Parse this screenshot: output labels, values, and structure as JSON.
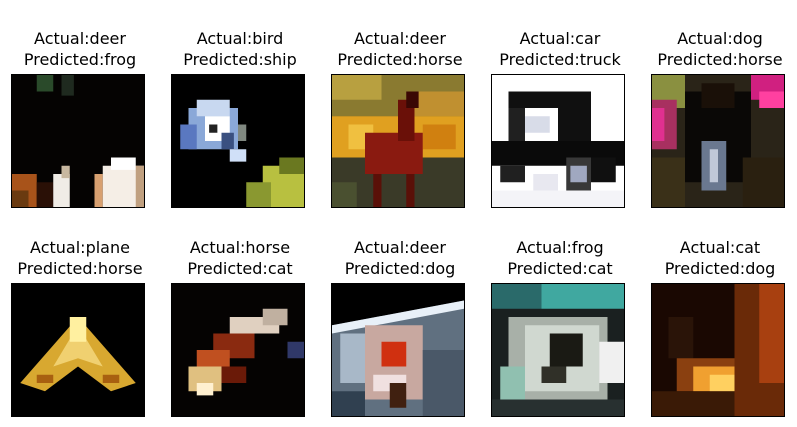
{
  "figure": {
    "panels": [
      {
        "actual_text": "Actual:deer",
        "predicted_text": "Predicted:frog"
      },
      {
        "actual_text": "Actual:bird",
        "predicted_text": "Predicted:ship"
      },
      {
        "actual_text": "Actual:deer",
        "predicted_text": "Predicted:horse"
      },
      {
        "actual_text": "Actual:car",
        "predicted_text": "Predicted:truck"
      },
      {
        "actual_text": "Actual:dog",
        "predicted_text": "Predicted:horse"
      },
      {
        "actual_text": "Actual:plane",
        "predicted_text": "Predicted:horse"
      },
      {
        "actual_text": "Actual:horse",
        "predicted_text": "Predicted:cat"
      },
      {
        "actual_text": "Actual:deer",
        "predicted_text": "Predicted:dog"
      },
      {
        "actual_text": "Actual:frog",
        "predicted_text": "Predicted:cat"
      },
      {
        "actual_text": "Actual:cat",
        "predicted_text": "Predicted:dog"
      }
    ]
  }
}
